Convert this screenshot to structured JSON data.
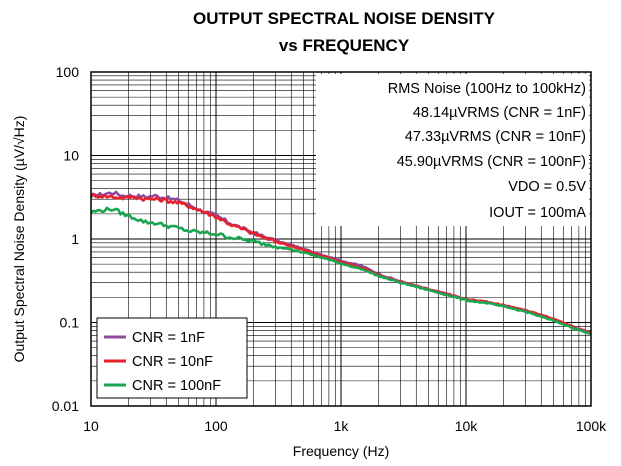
{
  "chart_data": {
    "type": "line",
    "title": "OUTPUT SPECTRAL NOISE DENSITY",
    "subtitle": "vs FREQUENCY",
    "xlabel": "Frequency (Hz)",
    "ylabel": "Output Spectral Noise Density (µV/√Hz)",
    "x_scale": "log",
    "y_scale": "log",
    "xlim": [
      10,
      100000
    ],
    "ylim": [
      0.01,
      100
    ],
    "x_ticks": [
      {
        "value": 10,
        "label": "10"
      },
      {
        "value": 100,
        "label": "100"
      },
      {
        "value": 1000,
        "label": "1k"
      },
      {
        "value": 10000,
        "label": "10k"
      },
      {
        "value": 100000,
        "label": "100k"
      }
    ],
    "y_ticks": [
      {
        "value": 0.01,
        "label": "0.01"
      },
      {
        "value": 0.1,
        "label": "0.1"
      },
      {
        "value": 1,
        "label": "1"
      },
      {
        "value": 10,
        "label": "10"
      },
      {
        "value": 100,
        "label": "100"
      }
    ],
    "grid": true,
    "legend_position": "bottom-left",
    "series": [
      {
        "name": "CNR = 1nF",
        "color": "#8e4a9a",
        "x": [
          10,
          12,
          15,
          18,
          22,
          27,
          33,
          40,
          50,
          60,
          75,
          100,
          130,
          170,
          220,
          300,
          400,
          500,
          700,
          1000,
          1500,
          2000,
          3000,
          5000,
          7000,
          10000,
          15000,
          20000,
          30000,
          50000,
          70000,
          100000
        ],
        "y": [
          3.3,
          3.4,
          3.6,
          3.3,
          3.3,
          3.2,
          3.3,
          3.1,
          2.9,
          2.6,
          2.2,
          1.9,
          1.55,
          1.3,
          1.12,
          0.95,
          0.85,
          0.76,
          0.65,
          0.55,
          0.47,
          0.38,
          0.31,
          0.25,
          0.22,
          0.19,
          0.175,
          0.16,
          0.14,
          0.11,
          0.09,
          0.075
        ]
      },
      {
        "name": "CNR = 10nF",
        "color": "#e8202a",
        "x": [
          10,
          12,
          15,
          18,
          22,
          27,
          33,
          40,
          50,
          60,
          75,
          100,
          130,
          170,
          220,
          300,
          400,
          500,
          700,
          1000,
          1500,
          2000,
          3000,
          5000,
          7000,
          10000,
          15000,
          20000,
          30000,
          50000,
          70000,
          100000
        ],
        "y": [
          3.3,
          3.3,
          3.2,
          3.1,
          3.2,
          3.0,
          3.0,
          2.9,
          2.7,
          2.5,
          2.2,
          1.85,
          1.5,
          1.28,
          1.1,
          0.93,
          0.83,
          0.74,
          0.63,
          0.53,
          0.45,
          0.37,
          0.305,
          0.25,
          0.22,
          0.19,
          0.175,
          0.16,
          0.14,
          0.11,
          0.09,
          0.075
        ]
      },
      {
        "name": "CNR = 100nF",
        "color": "#1aa650",
        "x": [
          10,
          12,
          15,
          18,
          22,
          27,
          33,
          40,
          50,
          60,
          75,
          100,
          130,
          170,
          220,
          300,
          400,
          500,
          700,
          1000,
          1500,
          2000,
          3000,
          5000,
          7000,
          10000,
          15000,
          20000,
          30000,
          50000,
          70000,
          100000
        ],
        "y": [
          2.1,
          2.2,
          2.3,
          2.0,
          1.8,
          1.6,
          1.55,
          1.45,
          1.35,
          1.25,
          1.2,
          1.15,
          1.05,
          0.98,
          0.9,
          0.82,
          0.75,
          0.69,
          0.6,
          0.51,
          0.43,
          0.36,
          0.3,
          0.245,
          0.215,
          0.185,
          0.17,
          0.155,
          0.135,
          0.105,
          0.088,
          0.072
        ]
      }
    ],
    "annotations": [
      "RMS Noise (100Hz to 100kHz)",
      "48.14µVRMS (CNR = 1nF)",
      "47.33µVRMS (CNR = 10nF)",
      "45.90µVRMS (CNR = 100nF)",
      "VDO = 0.5V",
      "IOUT = 100mA"
    ]
  }
}
